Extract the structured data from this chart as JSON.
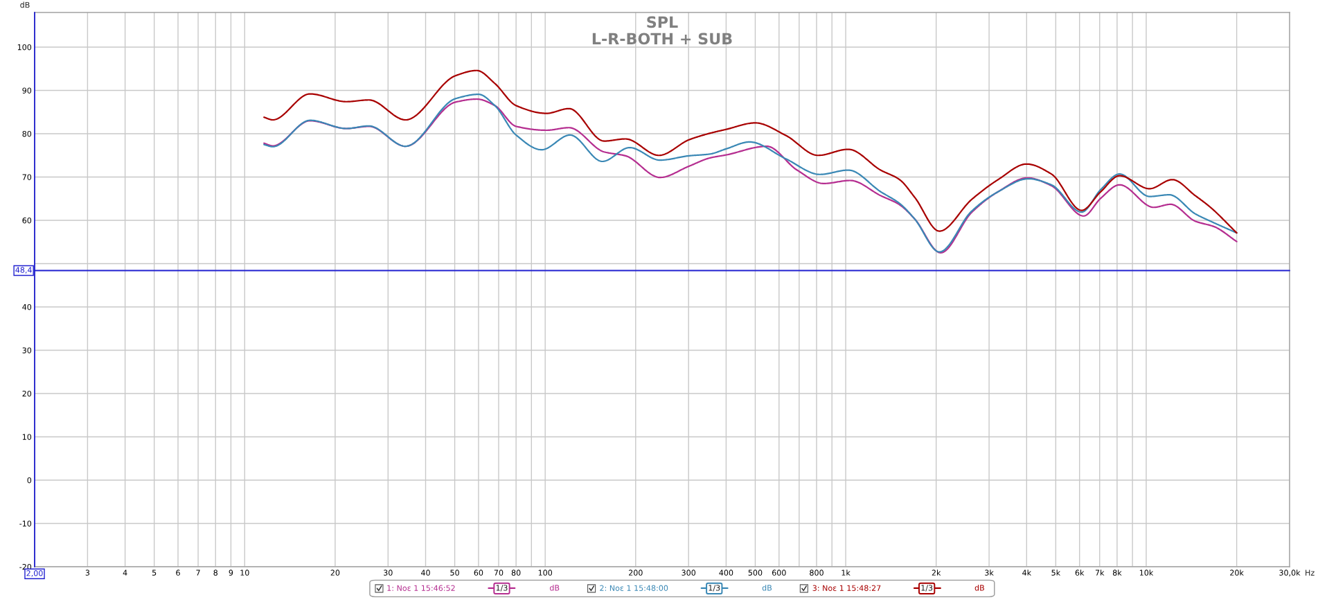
{
  "chart_data": {
    "type": "line",
    "title": "SPL",
    "subtitle": "L-R-BOTH + SUB",
    "xlabel": "Hz",
    "ylabel": "dB",
    "log": "x",
    "xlim": [
      2,
      30000
    ],
    "ylim": [
      -20,
      108
    ],
    "xticks": [
      3,
      4,
      5,
      6,
      7,
      8,
      9,
      10,
      20,
      30,
      40,
      50,
      60,
      70,
      80,
      {
        "value": 90,
        "label": null
      },
      100,
      200,
      300,
      400,
      500,
      600,
      {
        "value": 700,
        "label": null
      },
      800,
      {
        "value": 900,
        "label": null
      },
      {
        "value": 1000,
        "label": "1k"
      },
      {
        "value": 2000,
        "label": "2k"
      },
      {
        "value": 3000,
        "label": "3k"
      },
      {
        "value": 4000,
        "label": "4k"
      },
      {
        "value": 5000,
        "label": "5k"
      },
      {
        "value": 6000,
        "label": "6k"
      },
      {
        "value": 7000,
        "label": "7k"
      },
      {
        "value": 8000,
        "label": "8k"
      },
      {
        "value": 9000,
        "label": null
      },
      {
        "value": 10000,
        "label": "10k"
      },
      {
        "value": 20000,
        "label": "20k"
      },
      {
        "value": 30000,
        "label": "30,0k"
      }
    ],
    "yticks": [
      -20,
      -10,
      0,
      10,
      20,
      30,
      40,
      {
        "value": 50,
        "label": null
      },
      60,
      70,
      80,
      90,
      100
    ],
    "grid": true,
    "legend": "bottom",
    "ref_lines": [
      {
        "axis": "y",
        "value": 48.4,
        "label": "48,4",
        "color": "#2020d0"
      },
      {
        "axis": "x",
        "value": 2,
        "label": "2,00",
        "color": "#2020d0"
      }
    ],
    "annotations": [
      "1/3",
      "dB",
      "1/3",
      "dB",
      "1/3",
      "dB"
    ],
    "series": [
      {
        "name": "1: Νοε 1 15:46:52",
        "color": "#b52e90",
        "x": [
          11.6,
          12.4,
          16.5,
          21.8,
          25.9,
          34.3,
          50.3,
          59.2,
          68,
          80,
          101,
          120,
          157,
          185,
          241,
          301,
          353,
          400,
          546,
          689,
          845,
          1035,
          1307,
          1511,
          1697,
          2070,
          2623,
          3214,
          4025,
          4834,
          6190,
          7058,
          8153,
          10590,
          12050,
          14560,
          16880,
          20000
        ],
        "values": [
          77.8,
          77.2,
          83.0,
          81.2,
          81.7,
          77.1,
          87.3,
          88.0,
          86.5,
          81.7,
          80.8,
          81.4,
          75.8,
          74.9,
          69.9,
          72.5,
          74.4,
          75.1,
          77.1,
          71.6,
          68.5,
          69.2,
          65.7,
          63.6,
          60.3,
          52.5,
          61.8,
          66.6,
          69.8,
          68.0,
          61.0,
          65.1,
          68.2,
          63.0,
          63.7,
          59.8,
          58.5,
          55.1
        ]
      },
      {
        "name": "2: Νοε 1 15:48:00",
        "color": "#3a88b5",
        "x": [
          11.6,
          12.4,
          16.5,
          21.8,
          25.9,
          34.3,
          50.3,
          60,
          68,
          80,
          97.3,
          121,
          155,
          191,
          241,
          301,
          353,
          400,
          479,
          632,
          821,
          1020,
          1307,
          1511,
          1697,
          2050,
          2623,
          3214,
          4055,
          4834,
          6094,
          7058,
          8153,
          10260,
          11930,
          14560,
          16360,
          20000
        ],
        "values": [
          77.5,
          77.0,
          83.1,
          81.2,
          81.8,
          77.1,
          88.1,
          89.1,
          86.5,
          79.7,
          76.3,
          79.7,
          73.6,
          76.8,
          73.9,
          74.9,
          75.3,
          76.5,
          78.1,
          74.2,
          70.6,
          71.6,
          66.6,
          63.9,
          60.3,
          52.7,
          62.1,
          66.6,
          69.6,
          68.2,
          61.9,
          67.1,
          70.7,
          65.5,
          65.9,
          61.5,
          59.8,
          57.1
        ]
      },
      {
        "name": "3: Νοε 1 15:48:27",
        "color": "#a80000",
        "x": [
          11.6,
          12.4,
          16.5,
          21.8,
          25.9,
          34.3,
          50.3,
          59.2,
          68,
          80,
          101,
          120,
          157,
          185,
          239,
          301,
          353,
          400,
          500,
          632,
          809,
          1020,
          1307,
          1511,
          1697,
          2050,
          2623,
          3214,
          4000,
          4834,
          6094,
          7058,
          8153,
          10260,
          12210,
          14560,
          16360,
          20000
        ],
        "values": [
          83.8,
          83.2,
          89.2,
          87.4,
          87.8,
          83.2,
          93.4,
          94.6,
          91.6,
          86.5,
          84.7,
          85.8,
          78.3,
          78.8,
          75.0,
          78.6,
          80.1,
          81.0,
          82.5,
          79.6,
          75.0,
          76.4,
          71.6,
          69.4,
          65.3,
          57.5,
          64.8,
          69.4,
          73.0,
          70.7,
          62.3,
          66.6,
          70.3,
          67.3,
          69.4,
          65.7,
          63.0,
          57.1
        ]
      }
    ]
  }
}
